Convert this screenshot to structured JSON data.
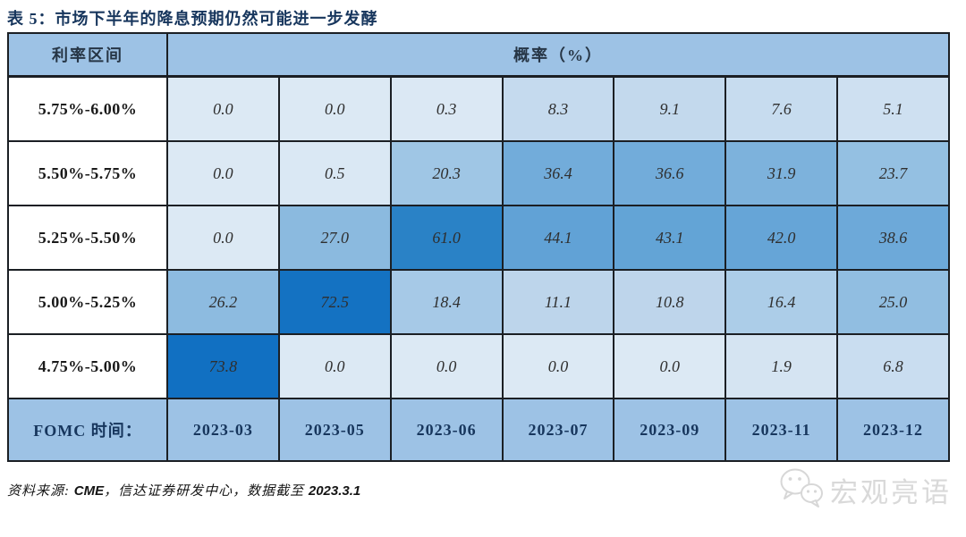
{
  "chart_data": {
    "type": "heatmap",
    "title": "表 5：市场下半年的降息预期仍然可能进一步发酵",
    "row_axis_label": "利率区间",
    "value_axis_label": "概率（%）",
    "column_axis_label": "FOMC 时间：",
    "rows": [
      "5.75%-6.00%",
      "5.50%-5.75%",
      "5.25%-5.50%",
      "5.00%-5.25%",
      "4.75%-5.00%"
    ],
    "columns": [
      "2023-03",
      "2023-05",
      "2023-06",
      "2023-07",
      "2023-09",
      "2023-11",
      "2023-12"
    ],
    "values": [
      [
        0.0,
        0.0,
        0.3,
        8.3,
        9.1,
        7.6,
        5.1
      ],
      [
        0.0,
        0.5,
        20.3,
        36.4,
        36.6,
        31.9,
        23.7
      ],
      [
        0.0,
        27.0,
        61.0,
        44.1,
        43.1,
        42.0,
        38.6
      ],
      [
        26.2,
        72.5,
        18.4,
        11.1,
        10.8,
        16.4,
        25.0
      ],
      [
        73.8,
        0.0,
        0.0,
        0.0,
        0.0,
        1.9,
        6.8
      ]
    ],
    "unit": "%",
    "value_decimals": 1,
    "colorscale_stops": [
      [
        0,
        "#DCE9F4"
      ],
      [
        2,
        "#D5E4F2"
      ],
      [
        7,
        "#C9DDF0"
      ],
      [
        11,
        "#BDD5EB"
      ],
      [
        18,
        "#A7CAE7"
      ],
      [
        21,
        "#9CC5E4"
      ],
      [
        27,
        "#8BBADF"
      ],
      [
        33,
        "#7AB0DB"
      ],
      [
        39,
        "#6CA9D9"
      ],
      [
        45,
        "#5FA1D5"
      ],
      [
        61,
        "#2A82C6"
      ],
      [
        74,
        "#1170C2"
      ]
    ]
  },
  "footer": {
    "source_prefix": "资料来源: ",
    "source_name": "CME",
    "source_mid": "，信达证券研发中心，数据截至 ",
    "source_date": "2023.3.1"
  },
  "watermark": {
    "brand": "宏观亮语",
    "icon": "wechat-icon"
  },
  "colors": {
    "header_bg": "#9DC2E5",
    "grid_border": "#1B1F24",
    "title_color": "#17365D",
    "row_label_color": "#1A1A1A",
    "value_color": "#2F2F2F",
    "date_color": "#17365D",
    "watermark_color": "#D9D9D9"
  }
}
